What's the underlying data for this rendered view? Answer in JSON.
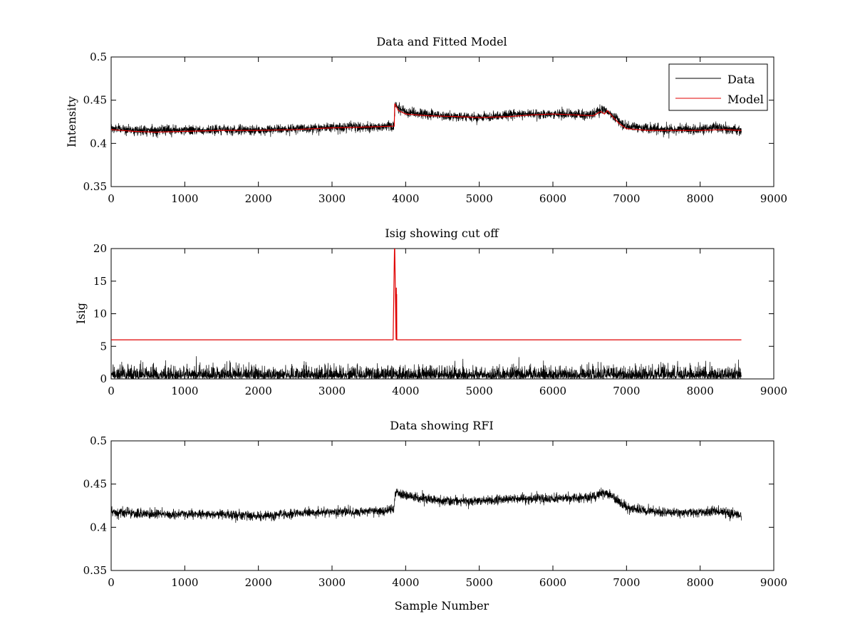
{
  "colors": {
    "data": "#000000",
    "model": "#e00000",
    "background": "#ffffff"
  },
  "chart_data": [
    {
      "id": "top",
      "type": "line",
      "title": "Data and Fitted Model",
      "xlabel": "",
      "ylabel": "Intensity",
      "xlim": [
        0,
        9000
      ],
      "ylim": [
        0.35,
        0.5
      ],
      "xticks": [
        0,
        1000,
        2000,
        3000,
        4000,
        5000,
        6000,
        7000,
        8000,
        9000
      ],
      "yticks": [
        0.35,
        0.4,
        0.45,
        0.5
      ],
      "ytick_labels": [
        "0.35",
        "0.4",
        "0.45",
        "0.5"
      ],
      "grid": false,
      "legend": {
        "position": "top-right",
        "entries": [
          "Data",
          "Model"
        ]
      },
      "series": [
        {
          "name": "Data",
          "color": "#000000",
          "kind": "noise",
          "x_max": 8560,
          "amplitude": 0.0045,
          "baseline": [
            [
              0,
              0.417
            ],
            [
              500,
              0.415
            ],
            [
              1000,
              0.415
            ],
            [
              1500,
              0.416
            ],
            [
              2000,
              0.415
            ],
            [
              2500,
              0.417
            ],
            [
              3000,
              0.419
            ],
            [
              3500,
              0.419
            ],
            [
              3840,
              0.42
            ],
            [
              3860,
              0.445
            ],
            [
              4000,
              0.436
            ],
            [
              4500,
              0.432
            ],
            [
              5000,
              0.43
            ],
            [
              5500,
              0.434
            ],
            [
              6000,
              0.434
            ],
            [
              6500,
              0.433
            ],
            [
              6700,
              0.439
            ],
            [
              6800,
              0.433
            ],
            [
              7000,
              0.419
            ],
            [
              7500,
              0.416
            ],
            [
              8000,
              0.416
            ],
            [
              8200,
              0.419
            ],
            [
              8560,
              0.414
            ]
          ]
        },
        {
          "name": "Model",
          "color": "#e00000",
          "x": [
            0,
            300,
            600,
            1000,
            1500,
            2000,
            2500,
            3000,
            3500,
            3845,
            3852,
            3900,
            4000,
            4300,
            4700,
            5000,
            5400,
            5700,
            6000,
            6300,
            6550,
            6650,
            6700,
            6740,
            6800,
            6900,
            7000,
            7300,
            7700,
            8000,
            8300,
            8560
          ],
          "y": [
            0.416,
            0.414,
            0.413,
            0.414,
            0.415,
            0.415,
            0.416,
            0.418,
            0.419,
            0.42,
            0.446,
            0.438,
            0.434,
            0.432,
            0.431,
            0.43,
            0.431,
            0.433,
            0.434,
            0.433,
            0.432,
            0.437,
            0.434,
            0.438,
            0.432,
            0.423,
            0.417,
            0.415,
            0.415,
            0.415,
            0.416,
            0.415
          ]
        }
      ]
    },
    {
      "id": "middle",
      "type": "line",
      "title": "Isig showing cut off",
      "xlabel": "",
      "ylabel": "Isig",
      "xlim": [
        0,
        9000
      ],
      "ylim": [
        0,
        20
      ],
      "xticks": [
        0,
        1000,
        2000,
        3000,
        4000,
        5000,
        6000,
        7000,
        8000,
        9000
      ],
      "yticks": [
        0,
        5,
        10,
        15,
        20
      ],
      "ytick_labels": [
        "0",
        "5",
        "10",
        "15",
        "20"
      ],
      "grid": false,
      "series": [
        {
          "name": "",
          "color": "#000000",
          "kind": "abs-noise",
          "x_max": 8560,
          "scale": 0.9,
          "cap": 3.5
        },
        {
          "name": "",
          "color": "#e00000",
          "x": [
            0,
            3830,
            3848,
            3852,
            3870,
            3872,
            3874,
            3876,
            3878,
            3880,
            8560
          ],
          "y": [
            6,
            6,
            20,
            20,
            6,
            12,
            14,
            6,
            13,
            6,
            6
          ]
        }
      ]
    },
    {
      "id": "bottom",
      "type": "line",
      "title": "Data showing RFI",
      "xlabel": "Sample Number",
      "ylabel": "",
      "xlim": [
        0,
        9000
      ],
      "ylim": [
        0.35,
        0.5
      ],
      "xticks": [
        0,
        1000,
        2000,
        3000,
        4000,
        5000,
        6000,
        7000,
        8000,
        9000
      ],
      "yticks": [
        0.35,
        0.4,
        0.45,
        0.5
      ],
      "ytick_labels": [
        "0.35",
        "0.4",
        "0.45",
        "0.5"
      ],
      "grid": false,
      "series": [
        {
          "name": "",
          "color": "#000000",
          "kind": "noise",
          "x_max": 8560,
          "amplitude": 0.0045,
          "baseline": [
            [
              0,
              0.417
            ],
            [
              500,
              0.415
            ],
            [
              1000,
              0.415
            ],
            [
              1500,
              0.415
            ],
            [
              2000,
              0.413
            ],
            [
              2500,
              0.416
            ],
            [
              3000,
              0.418
            ],
            [
              3500,
              0.418
            ],
            [
              3840,
              0.42
            ],
            [
              3860,
              0.442
            ],
            [
              4000,
              0.436
            ],
            [
              4500,
              0.431
            ],
            [
              5000,
              0.43
            ],
            [
              5500,
              0.433
            ],
            [
              6000,
              0.433
            ],
            [
              6500,
              0.435
            ],
            [
              6700,
              0.44
            ],
            [
              6800,
              0.436
            ],
            [
              7000,
              0.422
            ],
            [
              7500,
              0.417
            ],
            [
              8000,
              0.417
            ],
            [
              8200,
              0.419
            ],
            [
              8560,
              0.414
            ]
          ]
        }
      ]
    }
  ]
}
